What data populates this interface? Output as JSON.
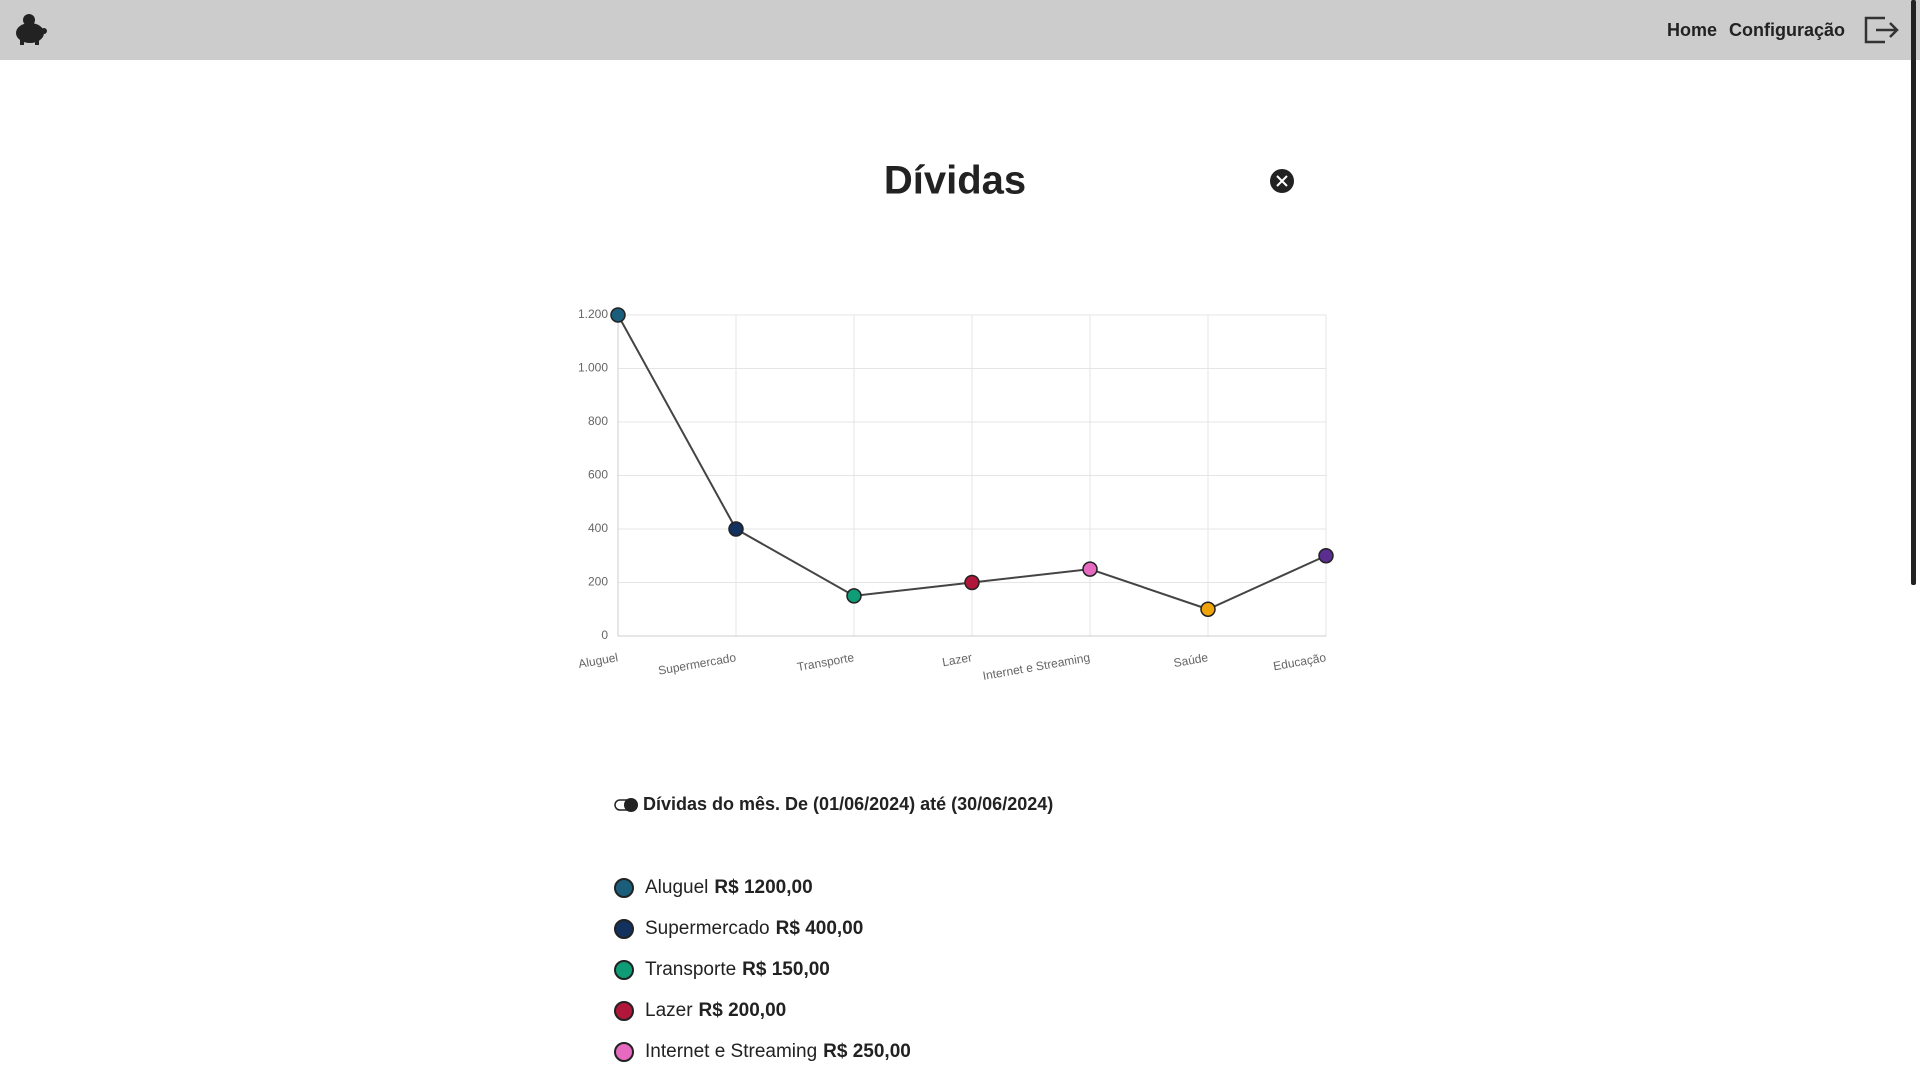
{
  "nav": {
    "links": [
      "Home",
      "Configuração"
    ]
  },
  "title": "Dívidas",
  "chart_data": {
    "type": "line",
    "categories": [
      "Aluguel",
      "Supermercado",
      "Transporte",
      "Lazer",
      "Internet e Streaming",
      "Saúde",
      "Educação"
    ],
    "values": [
      1200,
      400,
      150,
      200,
      250,
      100,
      300
    ],
    "line_color": "#444444",
    "point_colors": [
      "#1b5e7b",
      "#12315e",
      "#0f9d77",
      "#b0173a",
      "#e66ac0",
      "#f0a30a",
      "#5b2d91"
    ],
    "ylim": [
      0,
      1200
    ],
    "yticks": [
      0,
      200,
      400,
      600,
      800,
      {
        "value": 1000,
        "label": "1.000"
      },
      {
        "value": 1200,
        "label": "1.200"
      }
    ],
    "grid": true
  },
  "summary": "Dívidas do mês. De (01/06/2024) até (30/06/2024)",
  "items": [
    {
      "name": "Aluguel",
      "amount": "R$ 1200,00",
      "color": "#1b5e7b"
    },
    {
      "name": "Supermercado",
      "amount": "R$ 400,00",
      "color": "#12315e"
    },
    {
      "name": "Transporte",
      "amount": "R$ 150,00",
      "color": "#0f9d77"
    },
    {
      "name": "Lazer",
      "amount": "R$ 200,00",
      "color": "#b0173a"
    },
    {
      "name": "Internet e Streaming",
      "amount": "R$ 250,00",
      "color": "#e66ac0"
    }
  ]
}
